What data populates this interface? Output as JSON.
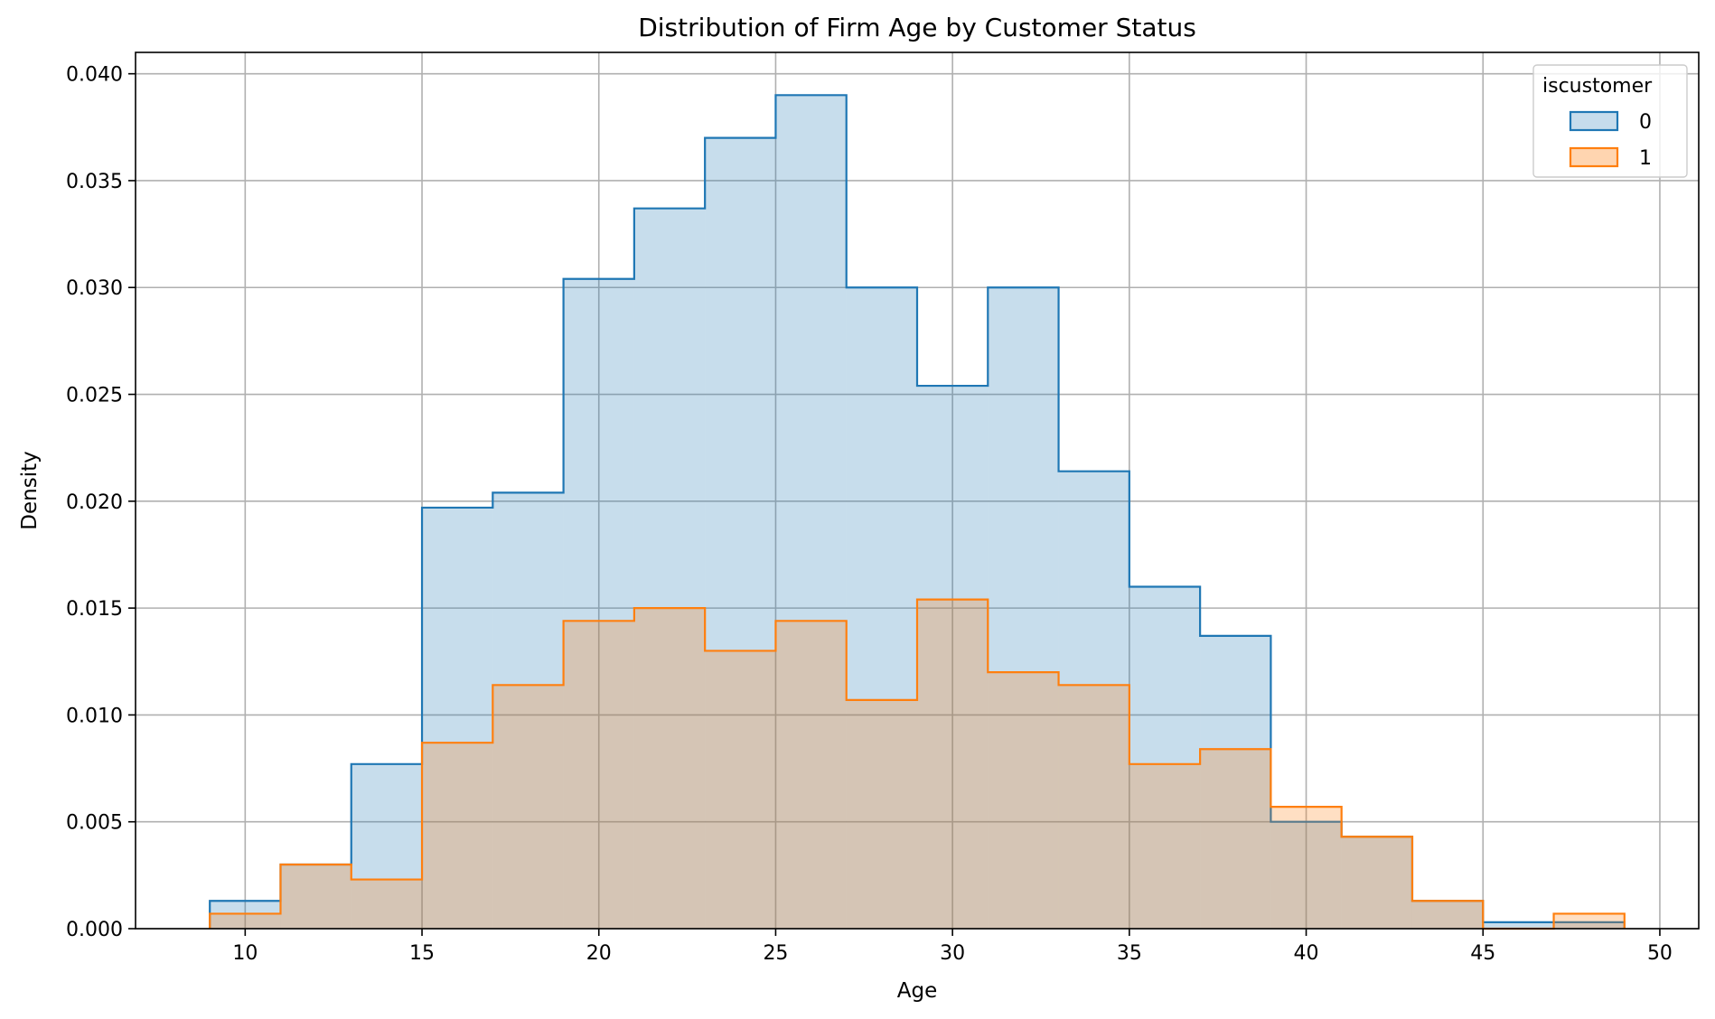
{
  "chart_data": {
    "type": "histogram-step",
    "title": "Distribution of Firm Age by Customer Status",
    "xlabel": "Age",
    "ylabel": "Density",
    "xlim": [
      6.9,
      51.1
    ],
    "ylim": [
      0,
      0.041
    ],
    "xticks": [
      10,
      15,
      20,
      25,
      30,
      35,
      40,
      45,
      50
    ],
    "yticks": [
      "0.000",
      "0.005",
      "0.010",
      "0.015",
      "0.020",
      "0.025",
      "0.030",
      "0.035",
      "0.040"
    ],
    "grid": true,
    "bin_edges": [
      9,
      11,
      13,
      15,
      17,
      19,
      21,
      23,
      25,
      27,
      29,
      31,
      33,
      35,
      37,
      39,
      41,
      43,
      45,
      47,
      49
    ],
    "legend": {
      "title": "iscustomer",
      "placement": "top-right"
    },
    "series": [
      {
        "name": "0",
        "color": "#1f77b4",
        "fill": "#c6dcec",
        "values": [
          0.0013,
          0.003,
          0.0077,
          0.0197,
          0.0204,
          0.0304,
          0.0337,
          0.037,
          0.039,
          0.03,
          0.0254,
          0.03,
          0.0214,
          0.016,
          0.0137,
          0.005,
          0.0043,
          0.0013,
          0.0003,
          0.0003
        ]
      },
      {
        "name": "1",
        "color": "#ff7f0e",
        "fill": "#ffd5b0",
        "values": [
          0.0007,
          0.003,
          0.0023,
          0.0087,
          0.0114,
          0.0144,
          0.015,
          0.013,
          0.0144,
          0.0107,
          0.0154,
          0.012,
          0.0114,
          0.0077,
          0.0084,
          0.0057,
          0.0043,
          0.0013,
          0.0,
          0.0007
        ]
      }
    ]
  }
}
